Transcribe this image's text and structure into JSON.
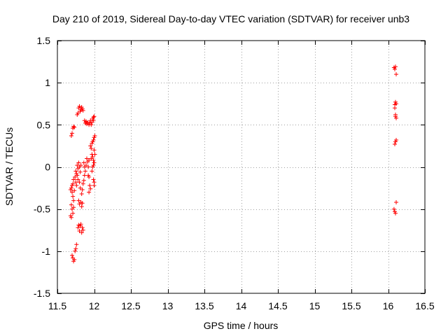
{
  "chart_data": {
    "type": "scatter",
    "title": "Day 210 of 2019, Sidereal Day-to-day VTEC variation (SDTVAR) for receiver unb3",
    "xlabel": "GPS time / hours",
    "ylabel": "SDTVAR / TECUs",
    "xlim": [
      11.5,
      16.5
    ],
    "ylim": [
      -1.5,
      1.5
    ],
    "xticks": [
      11.5,
      12,
      12.5,
      13,
      13.5,
      14,
      14.5,
      15,
      15.5,
      16,
      16.5
    ],
    "xtick_labels": [
      "11.5",
      "12",
      "12.5",
      "13",
      "13.5",
      "14",
      "14.5",
      "15",
      "15.5",
      "16",
      "16.5"
    ],
    "yticks": [
      -1.5,
      -1,
      -0.5,
      0,
      0.5,
      1,
      1.5
    ],
    "ytick_labels": [
      "-1.5",
      "-1",
      "-0.5",
      "0",
      "0.5",
      "1",
      "1.5"
    ],
    "grid": true,
    "marker": "+",
    "series": [
      {
        "name": "SDTVAR",
        "color": "#ff0000",
        "points": [
          [
            11.69,
            0.37
          ],
          [
            11.7,
            0.4
          ],
          [
            11.71,
            0.46
          ],
          [
            11.72,
            0.48
          ],
          [
            11.73,
            0.47
          ],
          [
            11.68,
            -0.27
          ],
          [
            11.69,
            -0.25
          ],
          [
            11.7,
            -0.22
          ],
          [
            11.7,
            -0.3
          ],
          [
            11.71,
            -0.35
          ],
          [
            11.69,
            -0.45
          ],
          [
            11.7,
            -0.5
          ],
          [
            11.71,
            -0.55
          ],
          [
            11.72,
            -0.48
          ],
          [
            11.68,
            -0.58
          ],
          [
            11.69,
            -0.6
          ],
          [
            11.72,
            -0.4
          ],
          [
            11.71,
            -0.2
          ],
          [
            11.72,
            -0.15
          ],
          [
            11.73,
            -0.28
          ],
          [
            11.7,
            -1.05
          ],
          [
            11.71,
            -1.08
          ],
          [
            11.72,
            -1.12
          ],
          [
            11.73,
            -1.1
          ],
          [
            11.74,
            -1.0
          ],
          [
            11.75,
            -0.97
          ],
          [
            11.76,
            -0.92
          ],
          [
            11.74,
            -0.12
          ],
          [
            11.75,
            -0.05
          ],
          [
            11.76,
            -0.08
          ],
          [
            11.75,
            -0.18
          ],
          [
            11.76,
            -0.22
          ],
          [
            11.77,
            0.02
          ],
          [
            11.78,
            -0.02
          ],
          [
            11.77,
            -0.1
          ],
          [
            11.78,
            -0.15
          ],
          [
            11.79,
            0.05
          ],
          [
            11.8,
            0.0
          ],
          [
            11.81,
            -0.06
          ],
          [
            11.82,
            0.02
          ],
          [
            11.8,
            -0.18
          ],
          [
            11.81,
            -0.25
          ],
          [
            11.79,
            -0.4
          ],
          [
            11.8,
            -0.44
          ],
          [
            11.82,
            -0.42
          ],
          [
            11.83,
            -0.47
          ],
          [
            11.84,
            -0.43
          ],
          [
            11.78,
            -0.72
          ],
          [
            11.79,
            -0.69
          ],
          [
            11.8,
            -0.76
          ],
          [
            11.81,
            -0.7
          ],
          [
            11.82,
            -0.68
          ],
          [
            11.84,
            -0.72
          ],
          [
            11.85,
            -0.75
          ],
          [
            11.83,
            -0.78
          ],
          [
            11.77,
            0.62
          ],
          [
            11.78,
            0.64
          ],
          [
            11.79,
            0.7
          ],
          [
            11.8,
            0.72
          ],
          [
            11.81,
            0.66
          ],
          [
            11.82,
            0.68
          ],
          [
            11.83,
            0.71
          ],
          [
            11.84,
            0.69
          ],
          [
            11.85,
            0.67
          ],
          [
            11.83,
            -0.32
          ],
          [
            11.84,
            -0.27
          ],
          [
            11.85,
            -0.2
          ],
          [
            11.86,
            -0.16
          ],
          [
            11.87,
            -0.1
          ],
          [
            11.86,
            0.05
          ],
          [
            11.87,
            0.0
          ],
          [
            11.88,
            -0.05
          ],
          [
            11.89,
            0.02
          ],
          [
            11.87,
            0.55
          ],
          [
            11.88,
            0.52
          ],
          [
            11.89,
            0.54
          ],
          [
            11.9,
            0.51
          ],
          [
            11.91,
            0.53
          ],
          [
            11.9,
            0.1
          ],
          [
            11.91,
            0.06
          ],
          [
            11.92,
            0.0
          ],
          [
            11.93,
            0.08
          ],
          [
            11.92,
            -0.1
          ],
          [
            11.93,
            -0.12
          ],
          [
            11.94,
            -0.22
          ],
          [
            11.95,
            -0.26
          ],
          [
            11.93,
            -0.3
          ],
          [
            11.93,
            0.5
          ],
          [
            11.94,
            0.52
          ],
          [
            11.95,
            0.55
          ],
          [
            11.96,
            0.5
          ],
          [
            11.97,
            0.53
          ],
          [
            11.95,
            0.25
          ],
          [
            11.96,
            0.22
          ],
          [
            11.97,
            0.28
          ],
          [
            11.98,
            0.3
          ],
          [
            11.97,
            0.15
          ],
          [
            11.96,
            0.1
          ],
          [
            11.98,
            0.12
          ],
          [
            11.99,
            0.08
          ],
          [
            11.97,
            -0.05
          ],
          [
            11.98,
            0.0
          ],
          [
            11.99,
            0.02
          ],
          [
            12.0,
            0.05
          ],
          [
            11.99,
            -0.15
          ],
          [
            12.0,
            -0.18
          ],
          [
            12.0,
            -0.22
          ],
          [
            11.98,
            0.57
          ],
          [
            11.99,
            0.59
          ],
          [
            12.0,
            0.6
          ],
          [
            11.99,
            0.55
          ],
          [
            11.99,
            0.32
          ],
          [
            12.0,
            0.35
          ],
          [
            12.01,
            0.37
          ],
          [
            12.01,
            0.15
          ],
          [
            12.0,
            0.2
          ],
          [
            16.08,
            1.18
          ],
          [
            16.09,
            1.16
          ],
          [
            16.1,
            1.19
          ],
          [
            16.11,
            1.1
          ],
          [
            16.09,
            0.74
          ],
          [
            16.1,
            0.77
          ],
          [
            16.11,
            0.75
          ],
          [
            16.09,
            0.7
          ],
          [
            16.1,
            0.62
          ],
          [
            16.11,
            0.58
          ],
          [
            16.1,
            0.6
          ],
          [
            16.09,
            0.27
          ],
          [
            16.1,
            0.3
          ],
          [
            16.11,
            0.32
          ],
          [
            16.08,
            -0.5
          ],
          [
            16.09,
            -0.53
          ],
          [
            16.1,
            -0.55
          ],
          [
            16.11,
            -0.42
          ]
        ]
      }
    ]
  }
}
